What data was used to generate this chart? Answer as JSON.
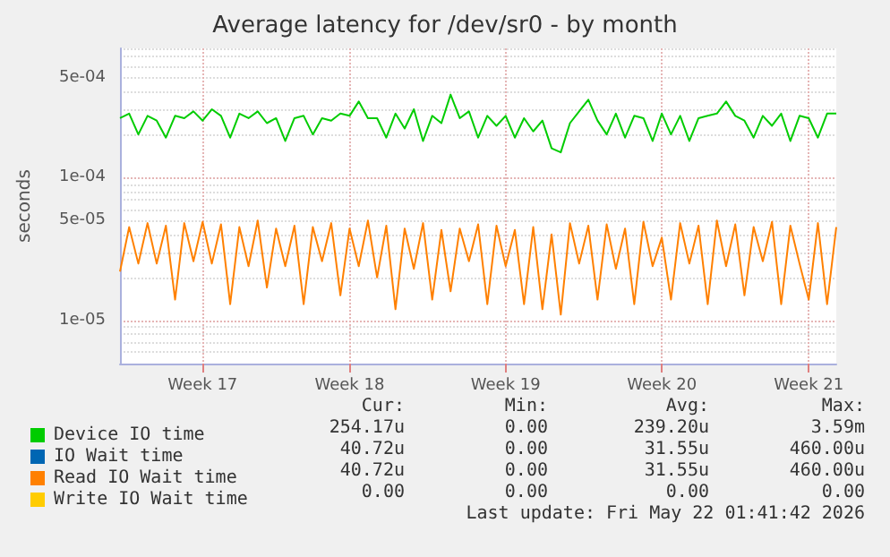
{
  "chart_data": {
    "type": "line",
    "title": "Average latency for /dev/sr0 - by month",
    "ylabel": "seconds",
    "log": "y",
    "grid": true,
    "legend": "bottom",
    "marker": "none",
    "categories": [
      null,
      null,
      null,
      null,
      null,
      null,
      null,
      null,
      null,
      "Week 17",
      null,
      null,
      null,
      null,
      null,
      null,
      null,
      null,
      null,
      null,
      null,
      null,
      null,
      null,
      null,
      "Week 18",
      null,
      null,
      null,
      null,
      null,
      null,
      null,
      null,
      null,
      null,
      null,
      null,
      null,
      null,
      null,
      null,
      "Week 19",
      null,
      null,
      null,
      null,
      null,
      null,
      null,
      null,
      null,
      null,
      null,
      null,
      null,
      null,
      null,
      null,
      "Week 20",
      null,
      null,
      null,
      null,
      null,
      null,
      null,
      null,
      null,
      null,
      null,
      null,
      null,
      null,
      null,
      "Week 21",
      null,
      null,
      null
    ],
    "ylim": [
      5e-06,
      0.0008
    ],
    "yticks": [
      {
        "value": 1e-05,
        "label": "1e-05"
      },
      {
        "value": 5e-05,
        "label": "5e-05"
      },
      {
        "value": 0.0001,
        "label": "1e-04"
      },
      {
        "value": 0.0005,
        "label": "5e-04"
      }
    ],
    "series": [
      {
        "name": "Device IO time",
        "color": "#00cc00",
        "values": [
          0.00026,
          0.00028,
          0.0002,
          0.00027,
          0.00025,
          0.00019,
          0.00027,
          0.00026,
          0.00029,
          0.00025,
          0.0003,
          0.00027,
          0.00019,
          0.00028,
          0.00026,
          0.00029,
          0.00024,
          0.00026,
          0.00018,
          0.00026,
          0.00027,
          0.0002,
          0.00026,
          0.00025,
          0.00028,
          0.00027,
          0.00034,
          0.00026,
          0.00026,
          0.00019,
          0.00028,
          0.00022,
          0.0003,
          0.00018,
          0.00027,
          0.00024,
          0.00038,
          0.00026,
          0.00029,
          0.00019,
          0.00027,
          0.00023,
          0.00027,
          0.00019,
          0.00026,
          0.00021,
          0.00025,
          0.00016,
          0.00015,
          0.00024,
          0.00029,
          0.00035,
          0.00025,
          0.0002,
          0.00028,
          0.00019,
          0.00027,
          0.00026,
          0.00018,
          0.00028,
          0.0002,
          0.00027,
          0.00018,
          0.00026,
          0.00027,
          0.00028,
          0.00034,
          0.00027,
          0.00025,
          0.00019,
          0.00027,
          0.00023,
          0.00028,
          0.00018,
          0.00027,
          0.00026,
          0.00019,
          0.00028,
          0.00028
        ]
      },
      {
        "name": "IO Wait time",
        "color": "#0066b3",
        "values": [
          null,
          null,
          null,
          null,
          null,
          null,
          null,
          null,
          null,
          null,
          null,
          null,
          null,
          null,
          null,
          null,
          null,
          null,
          null,
          null,
          null,
          null,
          null,
          null,
          null,
          null,
          null,
          null,
          null,
          null,
          null,
          null,
          null,
          null,
          null,
          null,
          null,
          null,
          null,
          null,
          null,
          null,
          null,
          null,
          null,
          null,
          null,
          null,
          null,
          null,
          null,
          null,
          null,
          null,
          null,
          null,
          null,
          null,
          null,
          null,
          null,
          null,
          null,
          null,
          null,
          null,
          null,
          null,
          null,
          null,
          null,
          null,
          null,
          null,
          null,
          null,
          null,
          null,
          null
        ]
      },
      {
        "name": "Read IO Wait time",
        "color": "#ff8000",
        "values": [
          2.2e-05,
          4.5e-05,
          2.5e-05,
          4.8e-05,
          2.5e-05,
          4.6e-05,
          1.4e-05,
          4.8e-05,
          2.6e-05,
          4.9e-05,
          2.5e-05,
          4.7e-05,
          1.3e-05,
          4.5e-05,
          2.4e-05,
          5e-05,
          1.7e-05,
          4.4e-05,
          2.4e-05,
          4.6e-05,
          1.3e-05,
          4.5e-05,
          2.6e-05,
          4.8e-05,
          1.5e-05,
          4.4e-05,
          2.4e-05,
          5e-05,
          2e-05,
          4.6e-05,
          1.2e-05,
          4.4e-05,
          2.3e-05,
          4.8e-05,
          1.4e-05,
          4.3e-05,
          1.6e-05,
          4.4e-05,
          2.6e-05,
          4.7e-05,
          1.3e-05,
          4.6e-05,
          2.4e-05,
          4.3e-05,
          1.3e-05,
          4.5e-05,
          1.2e-05,
          4e-05,
          1.1e-05,
          4.8e-05,
          2.5e-05,
          4.6e-05,
          1.4e-05,
          4.7e-05,
          2.3e-05,
          4.4e-05,
          1.3e-05,
          4.9e-05,
          2.4e-05,
          3.8e-05,
          1.4e-05,
          4.8e-05,
          2.5e-05,
          4.6e-05,
          1.3e-05,
          5e-05,
          2.4e-05,
          4.7e-05,
          1.5e-05,
          4.5e-05,
          2.6e-05,
          4.9e-05,
          1.3e-05,
          4.6e-05,
          2.5e-05,
          1.4e-05,
          4.8e-05,
          1.3e-05,
          4.5e-05
        ]
      },
      {
        "name": "Write IO Wait time",
        "color": "#ffcc00",
        "values": [
          null,
          null,
          null,
          null,
          null,
          null,
          null,
          null,
          null,
          null,
          null,
          null,
          null,
          null,
          null,
          null,
          null,
          null,
          null,
          null,
          null,
          null,
          null,
          null,
          null,
          null,
          null,
          null,
          null,
          null,
          null,
          null,
          null,
          null,
          null,
          null,
          null,
          null,
          null,
          null,
          null,
          null,
          null,
          null,
          null,
          null,
          null,
          null,
          null,
          null,
          null,
          null,
          null,
          null,
          null,
          null,
          null,
          null,
          null,
          null,
          null,
          null,
          null,
          null,
          null,
          null,
          null,
          null,
          null,
          null,
          null,
          null,
          null,
          null,
          null,
          null,
          null,
          null,
          null
        ]
      }
    ],
    "annotations": [
      "Cur:",
      "Min:",
      "Avg:",
      "Max:",
      "254.17u",
      "0.00",
      "239.20u",
      "3.59m",
      "40.72u",
      "0.00",
      "31.55u",
      "460.00u",
      "40.72u",
      "0.00",
      "31.55u",
      "460.00u",
      "0.00",
      "0.00",
      "0.00",
      "0.00",
      "Last update: Fri May 22 01:41:42 2026"
    ]
  }
}
